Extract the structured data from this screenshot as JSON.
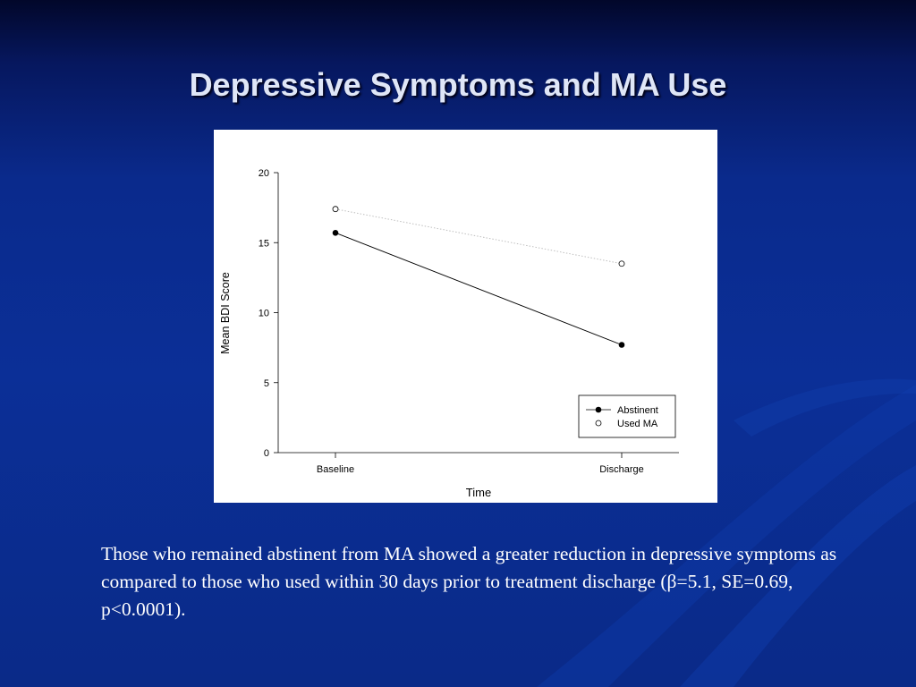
{
  "slide": {
    "title": "Depressive Symptoms and MA Use",
    "caption": "Those who remained abstinent from MA showed a greater reduction in depressive symptoms as compared to those who used within 30 days prior to treatment discharge (β=5.1, SE=0.69, p<0.0001)."
  },
  "colors": {
    "background": "#0b2f97",
    "title_text": "#dfe6f7",
    "caption_text": "#ffffff",
    "chart_background": "#ffffff",
    "ink": "#000000"
  },
  "chart_data": {
    "type": "line",
    "title": "",
    "xlabel": "Time",
    "ylabel": "Mean BDI Score",
    "categories": [
      "Baseline",
      "Discharge"
    ],
    "ylim": [
      0,
      20
    ],
    "yticks": [
      0,
      5,
      10,
      15,
      20
    ],
    "grid": false,
    "legend": "bottom-right",
    "series": [
      {
        "name": "Abstinent",
        "values": [
          15.7,
          7.7
        ],
        "marker": "filled-circle",
        "line": "solid",
        "line_color": "#000000"
      },
      {
        "name": "Used MA",
        "values": [
          17.4,
          13.5
        ],
        "marker": "open-circle",
        "line": "dotted",
        "line_color": "#bfbfbf"
      }
    ]
  }
}
